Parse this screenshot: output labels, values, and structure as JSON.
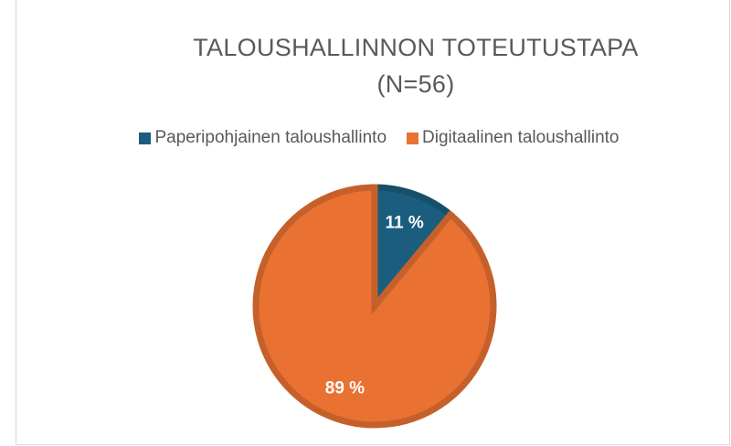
{
  "chart_data": {
    "type": "pie",
    "title": "TALOUSHALLINNON TOTEUTUSTAPA (N=56)",
    "categories": [
      "Paperipohjainen taloushallinto",
      "Digitaalinen taloushallinto"
    ],
    "values": [
      11,
      89
    ],
    "value_labels": [
      "11 %",
      "89 %"
    ],
    "colors": [
      "#1b5d7e",
      "#e97132"
    ],
    "legend": "top"
  }
}
